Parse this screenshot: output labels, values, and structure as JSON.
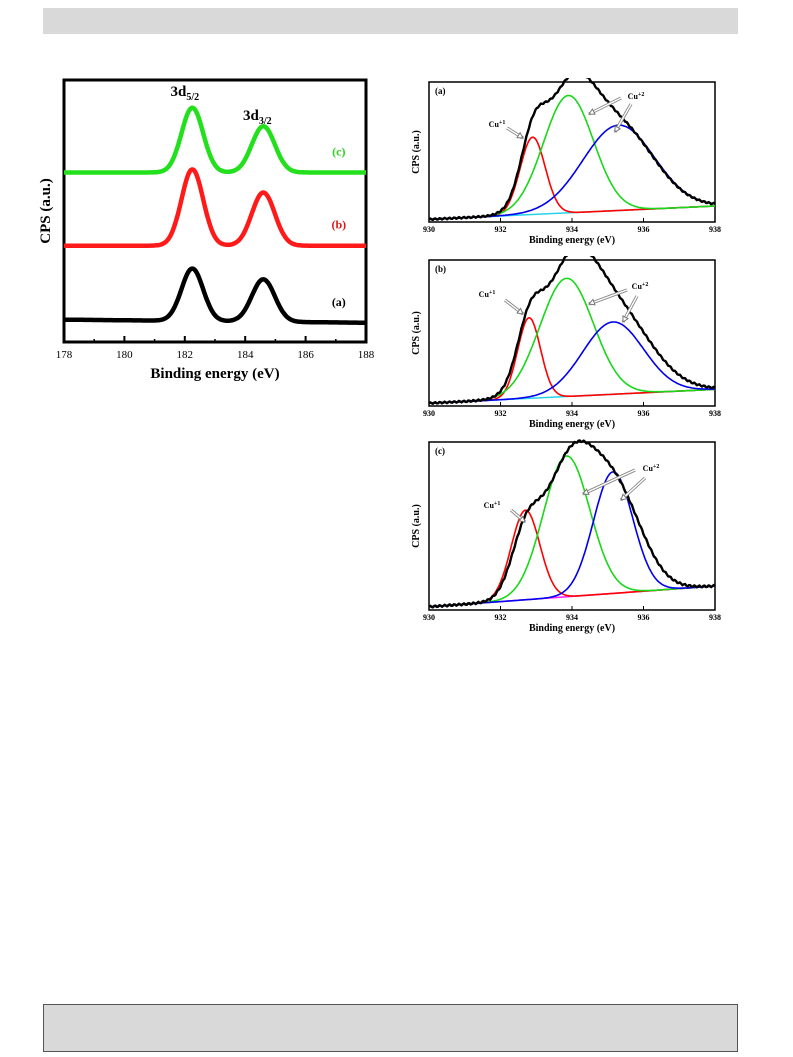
{
  "chart_data": [
    {
      "type": "line",
      "id": "s2p",
      "xlabel": "Binding energy (eV)",
      "ylabel": "CPS (a.u.)",
      "xlim": [
        178,
        188
      ],
      "xticks": [
        "178",
        "180",
        "182",
        "184",
        "186",
        "188"
      ],
      "peak_labels": [
        {
          "main": "3d",
          "sub": "5/2",
          "x": 182.2
        },
        {
          "main": "3d",
          "sub": "3/2",
          "x": 184.6
        }
      ],
      "series": [
        {
          "name": "(a)",
          "color": "#000000",
          "offset": 0.0,
          "peaks": [
            [
              182.25,
              0.68,
              0.36
            ],
            [
              184.6,
              0.55,
              0.38
            ]
          ]
        },
        {
          "name": "(b)",
          "color": "#ff1a1a",
          "offset": 1.0,
          "peaks": [
            [
              182.25,
              0.99,
              0.36
            ],
            [
              184.6,
              0.69,
              0.38
            ]
          ]
        },
        {
          "name": "(c)",
          "color": "#22e01c",
          "offset": 1.95,
          "peaks": [
            [
              182.25,
              0.84,
              0.36
            ],
            [
              184.6,
              0.6,
              0.38
            ]
          ]
        }
      ],
      "series_label_colors": [
        "#000000",
        "#e01818",
        "#2ad31c"
      ]
    },
    {
      "type": "line",
      "id": "cu_a",
      "panel_label": "(a)",
      "xlabel": "Binding energy (eV)",
      "ylabel": "CPS (a.u.)",
      "xlim": [
        930,
        938
      ],
      "xticks": [
        "930",
        "932",
        "934",
        "936",
        "938"
      ],
      "annotations": [
        {
          "text": "Cu",
          "sup": "+1"
        },
        {
          "text": "Cu",
          "sup": "+2"
        }
      ],
      "envelope": {
        "peaks": [
          [
            932.9,
            0.42,
            0.35
          ],
          [
            933.9,
            0.78,
            0.7
          ],
          [
            935.3,
            0.62,
            1.0
          ]
        ],
        "color": "#000000"
      },
      "components": [
        {
          "name": "Cu+1",
          "center": 932.9,
          "height": 0.58,
          "width": 0.35,
          "color": "#ff0000"
        },
        {
          "name": "Cu+2",
          "center": 933.9,
          "height": 0.88,
          "width": 0.7,
          "color": "#19d719"
        },
        {
          "name": "Cu+2",
          "center": 935.3,
          "height": 0.64,
          "width": 1.0,
          "color": "#0000ee"
        }
      ],
      "background": {
        "color": "#27d3e8",
        "y0": 0.02,
        "y1": 0.12
      }
    },
    {
      "type": "line",
      "id": "cu_b",
      "panel_label": "(b)",
      "xlabel": "Binding energy (eV)",
      "ylabel": "CPS (a.u.)",
      "xlim": [
        930,
        938
      ],
      "xticks": [
        "930",
        "932",
        "934",
        "936",
        "938"
      ],
      "annotations": [
        {
          "text": "Cu",
          "sup": "+1"
        },
        {
          "text": "Cu",
          "sup": "+2"
        }
      ],
      "envelope": {
        "peaks": [
          [
            932.8,
            0.38,
            0.35
          ],
          [
            933.9,
            0.78,
            0.75
          ],
          [
            935.2,
            0.58,
            1.0
          ]
        ],
        "color": "#000000"
      },
      "components": [
        {
          "name": "Cu+1",
          "center": 932.8,
          "height": 0.58,
          "width": 0.32,
          "color": "#ff0000"
        },
        {
          "name": "Cu+2",
          "center": 933.85,
          "height": 0.85,
          "width": 0.75,
          "color": "#19d719"
        },
        {
          "name": "Cu+2",
          "center": 935.15,
          "height": 0.52,
          "width": 0.85,
          "color": "#0000ee"
        }
      ],
      "background": {
        "color": "#27d3e8",
        "y0": 0.02,
        "y1": 0.12
      }
    },
    {
      "type": "line",
      "id": "cu_c",
      "panel_label": "(c)",
      "xlabel": "Binding energy (eV)",
      "ylabel": "CPS (a.u.)",
      "xlim": [
        930,
        938
      ],
      "xticks": [
        "930",
        "932",
        "934",
        "936",
        "938"
      ],
      "annotations": [
        {
          "text": "Cu",
          "sup": "+1"
        },
        {
          "text": "Cu",
          "sup": "+2"
        }
      ],
      "envelope": {
        "peaks": [
          [
            932.7,
            0.35,
            0.4
          ],
          [
            933.9,
            0.78,
            0.7
          ],
          [
            935.2,
            0.62,
            0.75
          ]
        ],
        "color": "#000000"
      },
      "components": [
        {
          "name": "Cu+1",
          "center": 932.7,
          "height": 0.56,
          "width": 0.4,
          "color": "#ff0000"
        },
        {
          "name": "Cu+2",
          "center": 933.85,
          "height": 0.88,
          "width": 0.65,
          "color": "#19d719"
        },
        {
          "name": "Cu+2",
          "center": 935.15,
          "height": 0.76,
          "width": 0.55,
          "color": "#0000ee"
        }
      ],
      "background": {
        "color": "#ff19ff",
        "y0": 0.02,
        "y1": 0.15
      }
    }
  ]
}
